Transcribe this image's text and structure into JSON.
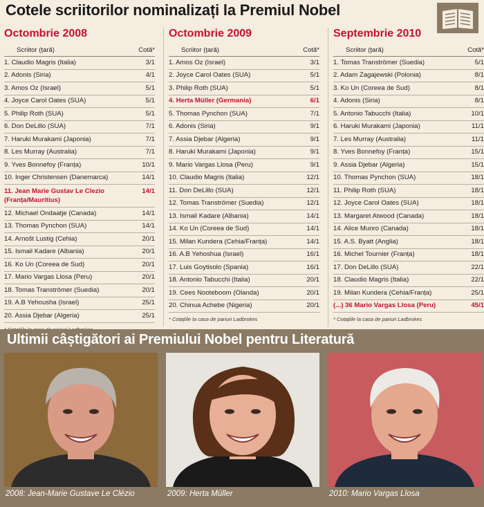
{
  "title": "Cotele scriitorilor nominalizați la Premiul Nobel",
  "icon": "book-icon",
  "colors": {
    "accent": "#c8102e",
    "background": "#f4ede0",
    "band": "#8b7a64"
  },
  "columns": [
    {
      "heading": "Octombrie 2008",
      "col_writer": "Scriitor (țară)",
      "col_odds": "Cotă*",
      "rows": [
        {
          "writer": "1.   Claudio Magris (Italia)",
          "odds": "3/1"
        },
        {
          "writer": "2.   Adonis (Siria)",
          "odds": "4/1"
        },
        {
          "writer": "3.   Amos Oz (Israel)",
          "odds": "5/1"
        },
        {
          "writer": "4.   Joyce Carol Oates (SUA)",
          "odds": "5/1"
        },
        {
          "writer": "5.   Philip Roth (SUA)",
          "odds": "5/1"
        },
        {
          "writer": "6.   Don DeLillo (SUA)",
          "odds": "7/1"
        },
        {
          "writer": "7.   Haruki Murakami (Japonia)",
          "odds": "7/1"
        },
        {
          "writer": "8.   Les Murray (Australia)",
          "odds": "7/1"
        },
        {
          "writer": "9.   Yves Bonnefoy (Franța)",
          "odds": "10/1"
        },
        {
          "writer": "10.  Inger Christensen (Danemarca)",
          "odds": "14/1"
        },
        {
          "writer": "11.  Jean Marie Gustav Le Clezio (Franța/Mauritius)",
          "odds": "14/1",
          "highlight": true,
          "tall": true
        },
        {
          "writer": "12.  Michael Ondaatje (Canada)",
          "odds": "14/1"
        },
        {
          "writer": "13.  Thomas Pynchon (SUA)",
          "odds": "14/1"
        },
        {
          "writer": "14.  Arnošt Lustig (Cehia)",
          "odds": "20/1"
        },
        {
          "writer": "15.  Ismail Kadare (Albania)",
          "odds": "20/1"
        },
        {
          "writer": "16.  Ko Un (Coreea de Sud)",
          "odds": "20/1"
        },
        {
          "writer": "17.  Mario Vargas Llosa (Peru)",
          "odds": "20/1"
        },
        {
          "writer": "18.  Tomas Tranströmer (Suedia)",
          "odds": "20/1"
        },
        {
          "writer": "19.  A.B Yehousha (Israel)",
          "odds": "25/1"
        },
        {
          "writer": "20.  Assia Djebar (Algeria)",
          "odds": "25/1"
        }
      ],
      "footnote": "* Cotațiile la casa de pariuri Ladbrokes"
    },
    {
      "heading": "Octombrie 2009",
      "col_writer": "Scriitor (țară)",
      "col_odds": "Cotă*",
      "rows": [
        {
          "writer": "1.   Amos Oz (Israel)",
          "odds": "3/1"
        },
        {
          "writer": "2.   Joyce Carol Oates (SUA)",
          "odds": "5/1"
        },
        {
          "writer": "3.   Philip Roth (SUA)",
          "odds": "5/1"
        },
        {
          "writer": "4.   Herta Müller (Germania)",
          "odds": "6/1",
          "highlight": true
        },
        {
          "writer": "5.   Thomas Pynchon (SUA)",
          "odds": "7/1"
        },
        {
          "writer": "6.   Adonis (Siria)",
          "odds": "9/1"
        },
        {
          "writer": "7.   Assia Djebar (Algeria)",
          "odds": "9/1"
        },
        {
          "writer": "8.   Haruki Murakami (Japonia)",
          "odds": "9/1"
        },
        {
          "writer": "9.   Mario Vargas Llosa (Peru)",
          "odds": "9/1"
        },
        {
          "writer": "10.  Claudio Magris (Italia)",
          "odds": "12/1"
        },
        {
          "writer": "11.  Don DeLillo (SUA)",
          "odds": "12/1"
        },
        {
          "writer": "12.  Tomas Tranströmer (Suedia)",
          "odds": "12/1"
        },
        {
          "writer": "13.  Ismail Kadare (Albania)",
          "odds": "14/1"
        },
        {
          "writer": "14.  Ko Un (Coreea de Sud)",
          "odds": "14/1"
        },
        {
          "writer": "15.  Milan Kundera (Cehia/Franța)",
          "odds": "14/1"
        },
        {
          "writer": "16.  A.B Yehoshua (Israel)",
          "odds": "16/1"
        },
        {
          "writer": "17.  Luis Goytisolo (Spania)",
          "odds": "16/1"
        },
        {
          "writer": "18.  Antonio Tabucchi (Italia)",
          "odds": "20/1"
        },
        {
          "writer": "19.  Cees Nooteboom (Olanda)",
          "odds": "20/1"
        },
        {
          "writer": "20.  Chinua Achebe (Nigeria)",
          "odds": "20/1"
        }
      ],
      "footnote": "* Cotațiile la casa de pariuri Ladbrokes"
    },
    {
      "heading": "Septembrie 2010",
      "col_writer": "Scriitor (țară)",
      "col_odds": "Cotă*",
      "rows": [
        {
          "writer": "1.   Tomas Tranströmer (Suedia)",
          "odds": "5/1"
        },
        {
          "writer": "2.   Adam Zagajewski (Polonia)",
          "odds": "8/1"
        },
        {
          "writer": "3.   Ko Un (Coreea de Sud)",
          "odds": "8/1"
        },
        {
          "writer": "4.   Adonis (Siria)",
          "odds": "8/1"
        },
        {
          "writer": "5.   Antonio Tabucchi (Italia)",
          "odds": "10/1"
        },
        {
          "writer": "6.   Haruki Murakami (Japonia)",
          "odds": "11/1"
        },
        {
          "writer": "7.   Les Murray (Australia)",
          "odds": "11/1"
        },
        {
          "writer": "8.   Yves Bonnefoy (Franța)",
          "odds": "15/1"
        },
        {
          "writer": "9.   Assia Djebar (Algeria)",
          "odds": "15/1"
        },
        {
          "writer": "10.  Thomas Pynchon (SUA)",
          "odds": "18/1"
        },
        {
          "writer": "11.  Philip Roth (SUA)",
          "odds": "18/1"
        },
        {
          "writer": "12.  Joyce Carol Oates (SUA)",
          "odds": "18/1"
        },
        {
          "writer": "13.  Margaret Atwood (Canada)",
          "odds": "18/1"
        },
        {
          "writer": "14.  Alice Munro (Canada)",
          "odds": "18/1"
        },
        {
          "writer": "15.  A.S. Byatt (Anglia)",
          "odds": "18/1"
        },
        {
          "writer": "16.  Michel Tournier (Franța)",
          "odds": "18/1"
        },
        {
          "writer": "17.  Don DeLillo (SUA)",
          "odds": "22/1"
        },
        {
          "writer": "18.  Claudio Magris (Italia)",
          "odds": "22/1"
        },
        {
          "writer": "19.  Milan Kundera (Cehia/Franța)",
          "odds": "25/1"
        },
        {
          "writer": "(...) 36 Mario Vargas Llosa (Peru)",
          "odds": "45/1",
          "highlight": true
        }
      ],
      "footnote": "* Cotațiile la casa de pariuri Ladbrokes"
    }
  ],
  "winners": {
    "title": "Ultimii câștigători ai Premiului Nobel pentru Literatură",
    "items": [
      {
        "caption": "2008: Jean-Marie Gustave Le Clézio",
        "bg": "#8d6a3c",
        "skin": "#d99b86",
        "hair": "#b9b3ab",
        "shirt": "#2c2c2c",
        "hair_style": "gray-short"
      },
      {
        "caption": "2009: Herta Müller",
        "bg": "#e8e4de",
        "skin": "#e7b096",
        "hair": "#5a3018",
        "shirt": "#1a1a1a",
        "hair_style": "bob"
      },
      {
        "caption": "2010: Mario Vargas Llosa",
        "bg": "#c75b5e",
        "skin": "#e3a88e",
        "hair": "#eceae6",
        "shirt": "#1f2a3a",
        "hair_style": "white"
      }
    ]
  }
}
